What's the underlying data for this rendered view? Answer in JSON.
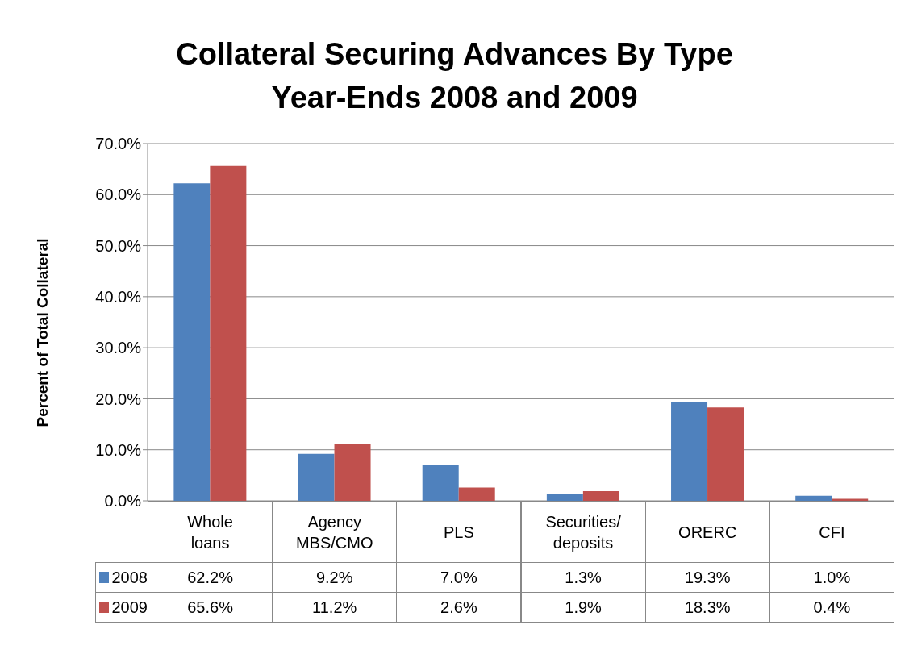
{
  "chart_data": {
    "type": "bar",
    "title": "Collateral Securing Advances By Type\nYear-Ends 2008 and 2009",
    "ylabel": "Percent of Total Collateral",
    "categories": [
      "Whole loans",
      "Agency MBS/CMO",
      "PLS",
      "Securities/\ndeposits",
      "ORERC",
      "CFI"
    ],
    "series": [
      {
        "name": "2008",
        "color": "#4f81bd",
        "values": [
          62.2,
          9.2,
          7.0,
          1.3,
          19.3,
          1.0
        ],
        "value_labels": [
          "62.2%",
          "9.2%",
          "7.0%",
          "1.3%",
          "19.3%",
          "1.0%"
        ]
      },
      {
        "name": "2009",
        "color": "#c0504d",
        "values": [
          65.6,
          11.2,
          2.6,
          1.9,
          18.3,
          0.4
        ],
        "value_labels": [
          "65.6%",
          "11.2%",
          "2.6%",
          "1.9%",
          "18.3%",
          "0.4%"
        ]
      }
    ],
    "ylim": [
      0,
      70
    ],
    "yticks": [
      {
        "value": 0,
        "label": "0.0%"
      },
      {
        "value": 10,
        "label": "10.0%"
      },
      {
        "value": 20,
        "label": "20.0%"
      },
      {
        "value": 30,
        "label": "30.0%"
      },
      {
        "value": 40,
        "label": "40.0%"
      },
      {
        "value": 50,
        "label": "50.0%"
      },
      {
        "value": 60,
        "label": "60.0%"
      },
      {
        "value": 70,
        "label": "70.0%"
      }
    ],
    "grid": "y",
    "legend": "bottom"
  }
}
